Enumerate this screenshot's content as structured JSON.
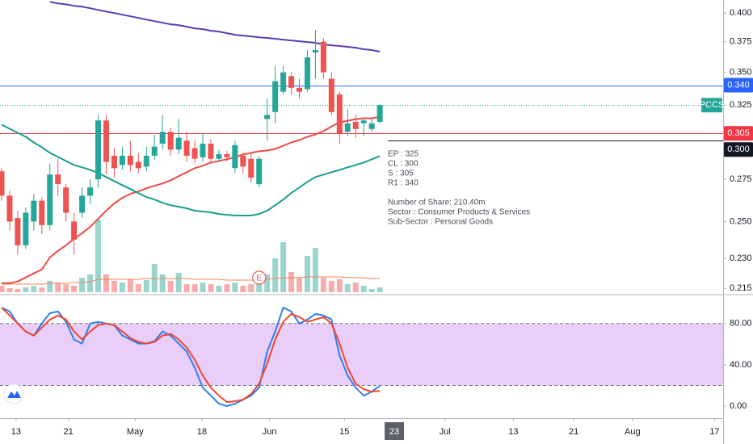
{
  "chart_data": [
    {
      "type": "candlestick",
      "log_scale": true,
      "x": [
        0,
        1,
        2,
        3,
        4,
        5,
        6,
        7,
        8,
        9,
        10,
        11,
        12,
        13,
        14,
        15,
        16,
        17,
        18,
        19,
        20,
        21,
        22,
        23,
        24,
        25,
        26,
        27,
        28,
        29,
        30,
        31,
        32,
        33,
        34,
        35,
        36,
        37,
        38,
        39,
        40,
        41,
        42,
        43,
        44,
        45,
        46,
        47
      ],
      "xlim": [
        -0.2,
        89.66
      ],
      "ylim": [
        0.212,
        0.412
      ],
      "yticks": [
        {
          "value": 0.4,
          "label": "0.400"
        },
        0.375,
        {
          "value": 0.35,
          "label": "0.350"
        },
        0.325,
        0.275,
        {
          "value": 0.25,
          "label": "0.250"
        },
        {
          "value": 0.23,
          "label": "0.230"
        },
        0.215
      ],
      "up_color": "#26a69a",
      "down_color": "#ef5350",
      "candles": {
        "open": [
          0.28,
          0.265,
          0.252,
          0.237,
          0.25,
          0.262,
          0.248,
          0.278,
          0.27,
          0.25,
          0.255,
          0.265,
          0.275,
          0.314,
          0.29,
          0.284,
          0.29,
          0.286,
          0.283,
          0.29,
          0.298,
          0.306,
          0.294,
          0.3,
          0.295,
          0.289,
          0.298,
          0.288,
          0.291,
          0.282,
          0.29,
          0.288,
          0.272,
          0.315,
          0.32,
          0.335,
          0.347,
          0.338,
          0.337,
          0.366,
          0.375,
          0.345,
          0.333,
          0.306,
          0.313,
          0.312,
          0.308,
          0.313
        ],
        "high": [
          0.282,
          0.268,
          0.256,
          0.258,
          0.266,
          0.264,
          0.285,
          0.288,
          0.272,
          0.255,
          0.27,
          0.275,
          0.318,
          0.318,
          0.295,
          0.296,
          0.3,
          0.292,
          0.296,
          0.304,
          0.318,
          0.309,
          0.315,
          0.306,
          0.3,
          0.305,
          0.301,
          0.294,
          0.293,
          0.3,
          0.292,
          0.292,
          0.29,
          0.33,
          0.355,
          0.355,
          0.35,
          0.345,
          0.368,
          0.385,
          0.378,
          0.35,
          0.335,
          0.322,
          0.318,
          0.316,
          0.316,
          0.326
        ],
        "low": [
          0.262,
          0.245,
          0.232,
          0.235,
          0.245,
          0.243,
          0.245,
          0.265,
          0.25,
          0.232,
          0.252,
          0.26,
          0.27,
          0.278,
          0.276,
          0.281,
          0.28,
          0.279,
          0.28,
          0.287,
          0.294,
          0.29,
          0.291,
          0.286,
          0.285,
          0.286,
          0.285,
          0.286,
          0.286,
          0.279,
          0.279,
          0.273,
          0.27,
          0.3,
          0.312,
          0.333,
          0.333,
          0.33,
          0.335,
          0.345,
          0.345,
          0.318,
          0.298,
          0.303,
          0.302,
          0.303,
          0.306,
          0.312
        ],
        "close": [
          0.265,
          0.25,
          0.237,
          0.255,
          0.262,
          0.248,
          0.278,
          0.272,
          0.255,
          0.24,
          0.265,
          0.27,
          0.314,
          0.286,
          0.282,
          0.29,
          0.284,
          0.282,
          0.29,
          0.296,
          0.306,
          0.294,
          0.302,
          0.29,
          0.288,
          0.298,
          0.288,
          0.291,
          0.289,
          0.297,
          0.283,
          0.276,
          0.288,
          0.318,
          0.343,
          0.35,
          0.338,
          0.335,
          0.362,
          0.368,
          0.35,
          0.32,
          0.305,
          0.312,
          0.308,
          0.314,
          0.312,
          0.325
        ]
      },
      "volume": {
        "vlim": [
          0,
          100
        ],
        "up_color": "#9ad4ce",
        "down_color": "#f7abaa",
        "ma_color": "#f4815a",
        "values": [
          8,
          5,
          4,
          6,
          8,
          6,
          14,
          12,
          10,
          8,
          18,
          22,
          90,
          22,
          14,
          12,
          16,
          10,
          15,
          35,
          22,
          14,
          24,
          10,
          10,
          12,
          10,
          8,
          10,
          12,
          8,
          10,
          14,
          22,
          42,
          62,
          25,
          18,
          45,
          55,
          18,
          14,
          16,
          10,
          12,
          8,
          4,
          6
        ],
        "ma": [
          10,
          10,
          10,
          10,
          10,
          10,
          11,
          11,
          11,
          12,
          12,
          13,
          16,
          16,
          16,
          16,
          16,
          16,
          17,
          17,
          17,
          17,
          17,
          17,
          16,
          16,
          16,
          16,
          15,
          15,
          15,
          15,
          15,
          16,
          17,
          18,
          18,
          18,
          19,
          19,
          19,
          19,
          19,
          18,
          18,
          18,
          17,
          17
        ]
      },
      "series": [
        {
          "color": "#ef4a43",
          "values": [
            0.2176,
            0.2176,
            0.2184,
            0.2204,
            0.2224,
            0.2244,
            0.2306,
            0.234,
            0.237,
            0.2404,
            0.2435,
            0.247,
            0.2516,
            0.2562,
            0.2604,
            0.2637,
            0.2661,
            0.2676,
            0.2695,
            0.271,
            0.2724,
            0.2744,
            0.2769,
            0.2794,
            0.282,
            0.2835,
            0.2856,
            0.2866,
            0.2877,
            0.2892,
            0.2908,
            0.2919,
            0.2929,
            0.2934,
            0.2945,
            0.2966,
            0.2988,
            0.3004,
            0.3026,
            0.3042,
            0.3065,
            0.3098,
            0.3126,
            0.3138,
            0.3149,
            0.3155,
            0.3155,
            0.3166
          ]
        },
        {
          "color": "#1a9e8f",
          "values": [
            0.311,
            0.3082,
            0.3054,
            0.3026,
            0.2988,
            0.2956,
            0.2919,
            0.2892,
            0.2866,
            0.284,
            0.2825,
            0.2809,
            0.2789,
            0.2764,
            0.2739,
            0.2714,
            0.269,
            0.2666,
            0.2642,
            0.2627,
            0.2608,
            0.2594,
            0.2585,
            0.2576,
            0.2562,
            0.2557,
            0.2552,
            0.2543,
            0.2538,
            0.2534,
            0.2534,
            0.2534,
            0.2543,
            0.2562,
            0.2594,
            0.2627,
            0.2666,
            0.27,
            0.2734,
            0.2764,
            0.2779,
            0.2794,
            0.2809,
            0.2825,
            0.284,
            0.2856,
            0.2877,
            0.2898
          ]
        },
        {
          "color": "#5b3cb0",
          "values": [
            null,
            null,
            null,
            null,
            null,
            null,
            0.4103,
            0.4088,
            0.408,
            0.4066,
            0.4058,
            0.4044,
            0.4029,
            0.4014,
            0.4,
            0.3986,
            0.3971,
            0.3957,
            0.3942,
            0.3928,
            0.3914,
            0.39,
            0.3893,
            0.3879,
            0.3865,
            0.3858,
            0.3844,
            0.3837,
            0.3823,
            0.3809,
            0.3802,
            0.3795,
            0.3788,
            0.3782,
            0.3775,
            0.3768,
            0.3761,
            0.3754,
            0.3747,
            0.3741,
            0.3727,
            0.372,
            0.3714,
            0.3707,
            0.37,
            0.3687,
            0.368,
            0.3667
          ]
        }
      ],
      "hlines": [
        {
          "value": 0.34,
          "label": "0.340",
          "color": "#2962ff"
        },
        {
          "value": 0.305,
          "label": "0.305",
          "color": "#f23645"
        }
      ],
      "price_line": {
        "value": 0.325,
        "label": "PCCS",
        "color": "#26a69a"
      },
      "crosshair_y": {
        "value": 0.3,
        "label": "0.300"
      },
      "earnings": {
        "x": 32,
        "label": "E"
      },
      "notes": [
        "EP : 325",
        "CL : 300",
        "S : 305",
        "R1 : 340",
        "Number of Share: 210.40m",
        "Sector : Consumer Products & Services",
        "Sub-Sector : Personal Goods"
      ]
    },
    {
      "type": "line",
      "x": [
        0,
        1,
        2,
        3,
        4,
        5,
        6,
        7,
        8,
        9,
        10,
        11,
        12,
        13,
        14,
        15,
        16,
        17,
        18,
        19,
        20,
        21,
        22,
        23,
        24,
        25,
        26,
        27,
        28,
        29,
        30,
        31,
        32,
        33,
        34,
        35,
        36,
        37,
        38,
        39,
        40,
        41,
        42,
        43,
        44,
        45,
        46,
        47
      ],
      "xlim": [
        -0.2,
        89.66
      ],
      "xticks": [
        {
          "value": 1.8,
          "label": "13"
        },
        {
          "value": 8.3,
          "label": "21"
        },
        {
          "value": 16.6,
          "label": "May"
        },
        {
          "value": 24.9,
          "label": "18"
        },
        {
          "value": 33.3,
          "label": "Jun"
        },
        {
          "value": 42.6,
          "label": "15"
        },
        {
          "value": 55.1,
          "label": "Jul"
        },
        {
          "value": 63.6,
          "label": "13"
        },
        {
          "value": 71.1,
          "label": "21"
        },
        {
          "value": 78.4,
          "label": "Aug"
        },
        {
          "value": 88.6,
          "label": "17"
        }
      ],
      "crosshair_x": {
        "value": 48.8,
        "label": "23"
      },
      "ylim": [
        -11.7,
        107.2
      ],
      "yticks": [
        {
          "value": 80,
          "label": "80.00"
        },
        {
          "value": 40,
          "label": "40.00"
        },
        {
          "value": 0,
          "label": "0.00"
        }
      ],
      "band": [
        20,
        80
      ],
      "band_color": "#e9cefa",
      "series": [
        {
          "color": "#2f80ed",
          "values": [
            95.5,
            91.7,
            80.0,
            72.2,
            68.3,
            80.0,
            90.1,
            91.7,
            81.6,
            64.5,
            60.6,
            80.0,
            81.6,
            80.0,
            78.4,
            68.3,
            64.5,
            60.6,
            60.6,
            62.9,
            72.2,
            68.3,
            60.6,
            52.8,
            37.3,
            17.9,
            10.1,
            2.3,
            0,
            2.3,
            6.2,
            10.1,
            17.9,
            52.8,
            72.2,
            95.5,
            91.7,
            80.0,
            83.9,
            89.3,
            87.8,
            83.9,
            48.9,
            29.5,
            17.9,
            10.1,
            14.0,
            19.4
          ]
        },
        {
          "color": "#f4452f",
          "values": [
            95.5,
            87.8,
            80.0,
            72.2,
            68.3,
            76.1,
            83.9,
            87.8,
            83.9,
            72.2,
            64.5,
            72.2,
            78.4,
            80.0,
            78.4,
            72.2,
            66.0,
            62.1,
            60.6,
            62.1,
            68.3,
            69.9,
            64.5,
            56.7,
            45.0,
            29.5,
            17.9,
            10.1,
            3.9,
            4.7,
            6.2,
            11.7,
            21.7,
            41.2,
            64.5,
            81.6,
            89.3,
            86.2,
            81.6,
            83.9,
            86.2,
            80.0,
            60.6,
            37.3,
            21.7,
            16.3,
            14.0,
            14.8
          ]
        }
      ]
    }
  ]
}
